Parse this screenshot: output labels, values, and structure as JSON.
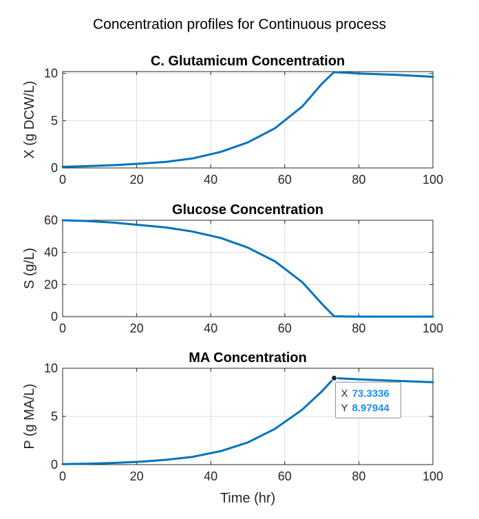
{
  "figure": {
    "title": "Concentration profiles for Continuous process",
    "line_color": "#0072BD"
  },
  "chart_data": [
    {
      "type": "line",
      "title": "C. Glutamicum Concentration",
      "xlabel": "",
      "ylabel": "X (g DCW/L)",
      "xlim": [
        0,
        100
      ],
      "ylim": [
        0,
        10.2
      ],
      "xticks": [
        0,
        20,
        40,
        60,
        80,
        100
      ],
      "yticks": [
        0,
        5,
        10
      ],
      "grid": true,
      "x": [
        0,
        7,
        14,
        21,
        28,
        35,
        42.7,
        50,
        57.3,
        64.7,
        70,
        73.3,
        80,
        90,
        100
      ],
      "y": [
        0.12,
        0.2,
        0.3,
        0.45,
        0.65,
        1.0,
        1.7,
        2.7,
        4.2,
        6.5,
        8.9,
        10.15,
        10.0,
        9.85,
        9.65
      ]
    },
    {
      "type": "line",
      "title": "Glucose Concentration",
      "xlabel": "",
      "ylabel": "S (g/L)",
      "xlim": [
        0,
        100
      ],
      "ylim": [
        0,
        60
      ],
      "xticks": [
        0,
        20,
        40,
        60,
        80,
        100
      ],
      "yticks": [
        0,
        20,
        40,
        60
      ],
      "grid": true,
      "x": [
        0,
        7,
        14,
        21,
        28,
        35,
        42.7,
        50,
        57.3,
        64.7,
        70,
        73.3,
        80,
        90,
        100
      ],
      "y": [
        60,
        59.5,
        58.5,
        57,
        55.5,
        53,
        49,
        43,
        34.5,
        21.5,
        8,
        0.2,
        0,
        0,
        0
      ]
    },
    {
      "type": "line",
      "title": "MA Concentration",
      "xlabel": "Time (hr)",
      "ylabel": "P (g MA/L)",
      "xlim": [
        0,
        100
      ],
      "ylim": [
        0,
        10
      ],
      "xticks": [
        0,
        20,
        40,
        60,
        80,
        100
      ],
      "yticks": [
        0,
        5,
        10
      ],
      "grid": true,
      "x": [
        0,
        7,
        14,
        21,
        28,
        35,
        42.7,
        50,
        57.3,
        64.7,
        70,
        73.3336,
        80,
        90,
        100
      ],
      "y": [
        0.05,
        0.1,
        0.18,
        0.3,
        0.5,
        0.8,
        1.4,
        2.3,
        3.7,
        5.7,
        7.6,
        8.97944,
        8.85,
        8.7,
        8.55
      ],
      "datatip": {
        "x_label": "X",
        "x_value": "73.3336",
        "y_label": "Y",
        "y_value": "8.97944",
        "point": [
          73.3336,
          8.97944
        ]
      }
    }
  ]
}
